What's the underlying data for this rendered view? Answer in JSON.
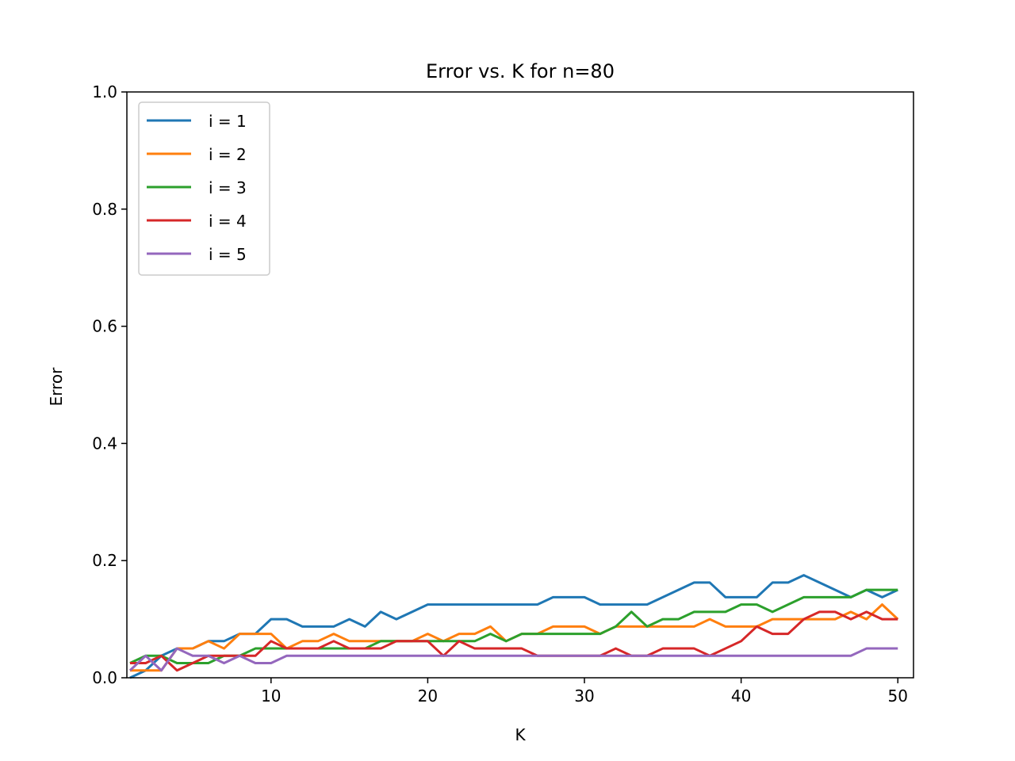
{
  "chart_data": {
    "type": "line",
    "title": "Error vs. K for n=80",
    "xlabel": "K",
    "ylabel": "Error",
    "xlim": [
      0.8,
      51
    ],
    "ylim": [
      0,
      1.0
    ],
    "x_ticks": [
      10,
      20,
      30,
      40,
      50
    ],
    "y_ticks": [
      0.0,
      0.2,
      0.4,
      0.6,
      0.8,
      1.0
    ],
    "y_tick_labels": [
      "0.0",
      "0.2",
      "0.4",
      "0.6",
      "0.8",
      "1.0"
    ],
    "grid": false,
    "legend_position": "upper-left",
    "x": [
      1,
      2,
      3,
      4,
      5,
      6,
      7,
      8,
      9,
      10,
      11,
      12,
      13,
      14,
      15,
      16,
      17,
      18,
      19,
      20,
      21,
      22,
      23,
      24,
      25,
      26,
      27,
      28,
      29,
      30,
      31,
      32,
      33,
      34,
      35,
      36,
      37,
      38,
      39,
      40,
      41,
      42,
      43,
      44,
      45,
      46,
      47,
      48,
      49,
      50
    ],
    "series": [
      {
        "name": "i = 1",
        "color": "#1f77b4",
        "values": [
          0.0,
          0.0125,
          0.0375,
          0.05,
          0.05,
          0.0625,
          0.0625,
          0.075,
          0.075,
          0.1,
          0.1,
          0.0875,
          0.0875,
          0.0875,
          0.1,
          0.0875,
          0.1125,
          0.1,
          0.1125,
          0.125,
          0.125,
          0.125,
          0.125,
          0.125,
          0.125,
          0.125,
          0.125,
          0.1375,
          0.1375,
          0.1375,
          0.125,
          0.125,
          0.125,
          0.125,
          0.1375,
          0.15,
          0.1625,
          0.1625,
          0.1375,
          0.1375,
          0.1375,
          0.1625,
          0.1625,
          0.175,
          0.1625,
          0.15,
          0.1375,
          0.15,
          0.1375,
          0.15
        ]
      },
      {
        "name": "i = 2",
        "color": "#ff7f0e",
        "values": [
          0.0125,
          0.0125,
          0.0125,
          0.05,
          0.05,
          0.0625,
          0.05,
          0.075,
          0.075,
          0.075,
          0.05,
          0.0625,
          0.0625,
          0.075,
          0.0625,
          0.0625,
          0.0625,
          0.0625,
          0.0625,
          0.075,
          0.0625,
          0.075,
          0.075,
          0.0875,
          0.0625,
          0.075,
          0.075,
          0.0875,
          0.0875,
          0.0875,
          0.075,
          0.0875,
          0.0875,
          0.0875,
          0.0875,
          0.0875,
          0.0875,
          0.1,
          0.0875,
          0.0875,
          0.0875,
          0.1,
          0.1,
          0.1,
          0.1,
          0.1,
          0.1125,
          0.1,
          0.125,
          0.1
        ]
      },
      {
        "name": "i = 3",
        "color": "#2ca02c",
        "values": [
          0.025,
          0.0375,
          0.0375,
          0.025,
          0.025,
          0.025,
          0.0375,
          0.0375,
          0.05,
          0.05,
          0.05,
          0.05,
          0.05,
          0.05,
          0.05,
          0.05,
          0.0625,
          0.0625,
          0.0625,
          0.0625,
          0.0625,
          0.0625,
          0.0625,
          0.075,
          0.0625,
          0.075,
          0.075,
          0.075,
          0.075,
          0.075,
          0.075,
          0.0875,
          0.1125,
          0.0875,
          0.1,
          0.1,
          0.1125,
          0.1125,
          0.1125,
          0.125,
          0.125,
          0.1125,
          0.125,
          0.1375,
          0.1375,
          0.1375,
          0.1375,
          0.15,
          0.15,
          0.15
        ]
      },
      {
        "name": "i = 4",
        "color": "#d62728",
        "values": [
          0.025,
          0.025,
          0.0375,
          0.0125,
          0.025,
          0.0375,
          0.0375,
          0.0375,
          0.0375,
          0.0625,
          0.05,
          0.05,
          0.05,
          0.0625,
          0.05,
          0.05,
          0.05,
          0.0625,
          0.0625,
          0.0625,
          0.0375,
          0.0625,
          0.05,
          0.05,
          0.05,
          0.05,
          0.0375,
          0.0375,
          0.0375,
          0.0375,
          0.0375,
          0.05,
          0.0375,
          0.0375,
          0.05,
          0.05,
          0.05,
          0.0375,
          0.05,
          0.0625,
          0.0875,
          0.075,
          0.075,
          0.1,
          0.1125,
          0.1125,
          0.1,
          0.1125,
          0.1,
          0.1
        ]
      },
      {
        "name": "i = 5",
        "color": "#9467bd",
        "values": [
          0.0125,
          0.0375,
          0.0125,
          0.05,
          0.0375,
          0.0375,
          0.025,
          0.0375,
          0.025,
          0.025,
          0.0375,
          0.0375,
          0.0375,
          0.0375,
          0.0375,
          0.0375,
          0.0375,
          0.0375,
          0.0375,
          0.0375,
          0.0375,
          0.0375,
          0.0375,
          0.0375,
          0.0375,
          0.0375,
          0.0375,
          0.0375,
          0.0375,
          0.0375,
          0.0375,
          0.0375,
          0.0375,
          0.0375,
          0.0375,
          0.0375,
          0.0375,
          0.0375,
          0.0375,
          0.0375,
          0.0375,
          0.0375,
          0.0375,
          0.0375,
          0.0375,
          0.0375,
          0.0375,
          0.05,
          0.05,
          0.05
        ]
      }
    ]
  }
}
